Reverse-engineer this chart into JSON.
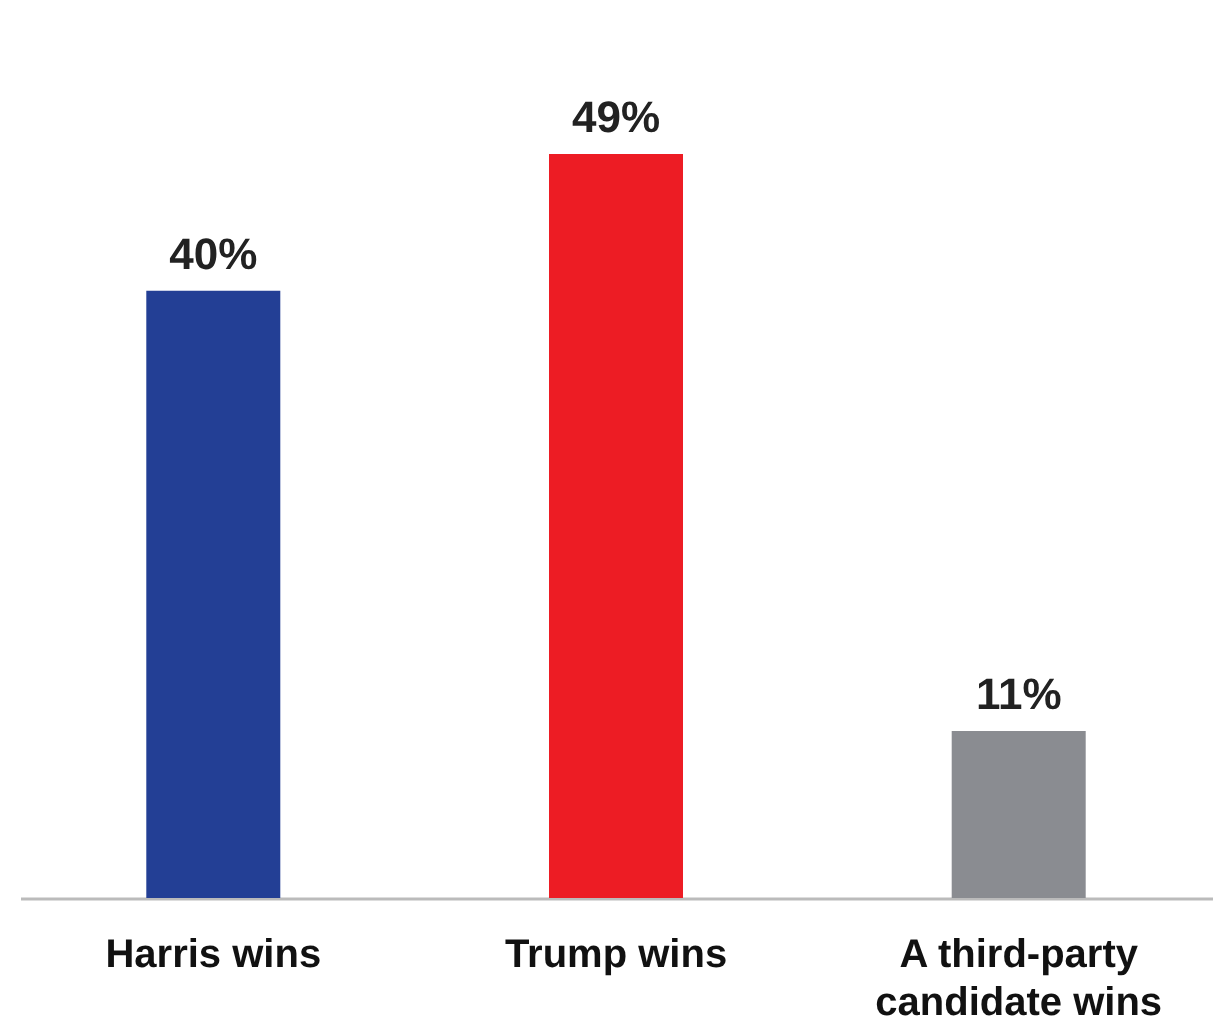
{
  "chart_data": {
    "type": "bar",
    "categories": [
      "Harris wins",
      "Trump wins",
      "A third-party candidate wins"
    ],
    "values": [
      40,
      49,
      11
    ],
    "colors": [
      "#233f95",
      "#ed1c24",
      "#8a8c91"
    ],
    "value_labels": [
      "40%",
      "49%",
      "11%"
    ],
    "tick_labels": "x",
    "grid": false
  }
}
